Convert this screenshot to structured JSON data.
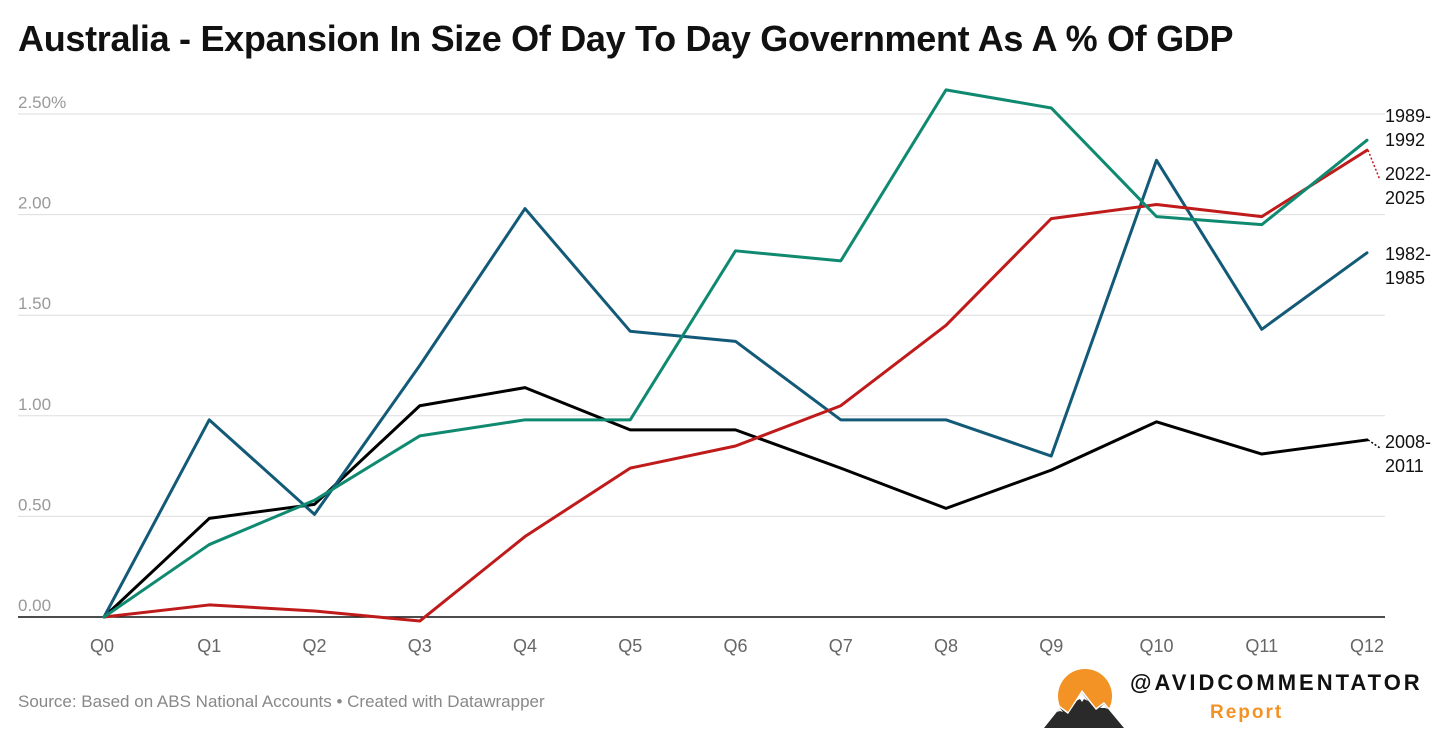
{
  "title": "Australia - Expansion In Size Of Day To Day Government As A % Of GDP",
  "source": "Source: Based on ABS National Accounts • Created with Datawrapper",
  "brand": {
    "handle": "@AVIDCOMMENTATOR",
    "sub": "Report",
    "logo_icon": "sun-mountains-icon",
    "sun_color": "#f39325"
  },
  "chart_data": {
    "type": "line",
    "categories": [
      "Q0",
      "Q1",
      "Q2",
      "Q3",
      "Q4",
      "Q5",
      "Q6",
      "Q7",
      "Q8",
      "Q9",
      "Q10",
      "Q11",
      "Q12"
    ],
    "ylim": [
      0,
      2.5
    ],
    "yticks": [
      0,
      0.5,
      1.0,
      1.5,
      2.0,
      2.5
    ],
    "ytick_labels": [
      "0.00",
      "0.50",
      "1.00",
      "1.50",
      "2.00",
      "2.50%"
    ],
    "grid": true,
    "series": [
      {
        "name": "1989-1992",
        "label_lines": [
          "1989-",
          "1992"
        ],
        "color": "#0f8a70",
        "values": [
          0,
          0.36,
          0.58,
          0.9,
          0.98,
          0.98,
          1.82,
          1.77,
          2.62,
          2.53,
          1.99,
          1.95,
          2.37
        ]
      },
      {
        "name": "2022-2025",
        "label_lines": [
          "2022-",
          "2025"
        ],
        "color": "#c01b1b",
        "values": [
          0,
          0.06,
          0.03,
          -0.02,
          0.4,
          0.74,
          0.85,
          1.05,
          1.45,
          1.98,
          2.05,
          1.99,
          2.32
        ]
      },
      {
        "name": "1982-1985",
        "label_lines": [
          "1982-",
          "1985"
        ],
        "color": "#135a78",
        "values": [
          0,
          0.98,
          0.51,
          1.25,
          2.03,
          1.42,
          1.37,
          0.98,
          0.98,
          0.8,
          2.27,
          1.43,
          1.81
        ]
      },
      {
        "name": "2008-2011",
        "label_lines": [
          "2008-",
          "2011"
        ],
        "color": "#000000",
        "values": [
          0,
          0.49,
          0.56,
          1.05,
          1.14,
          0.93,
          0.93,
          0.74,
          0.54,
          0.73,
          0.97,
          0.81,
          0.88
        ]
      }
    ]
  }
}
